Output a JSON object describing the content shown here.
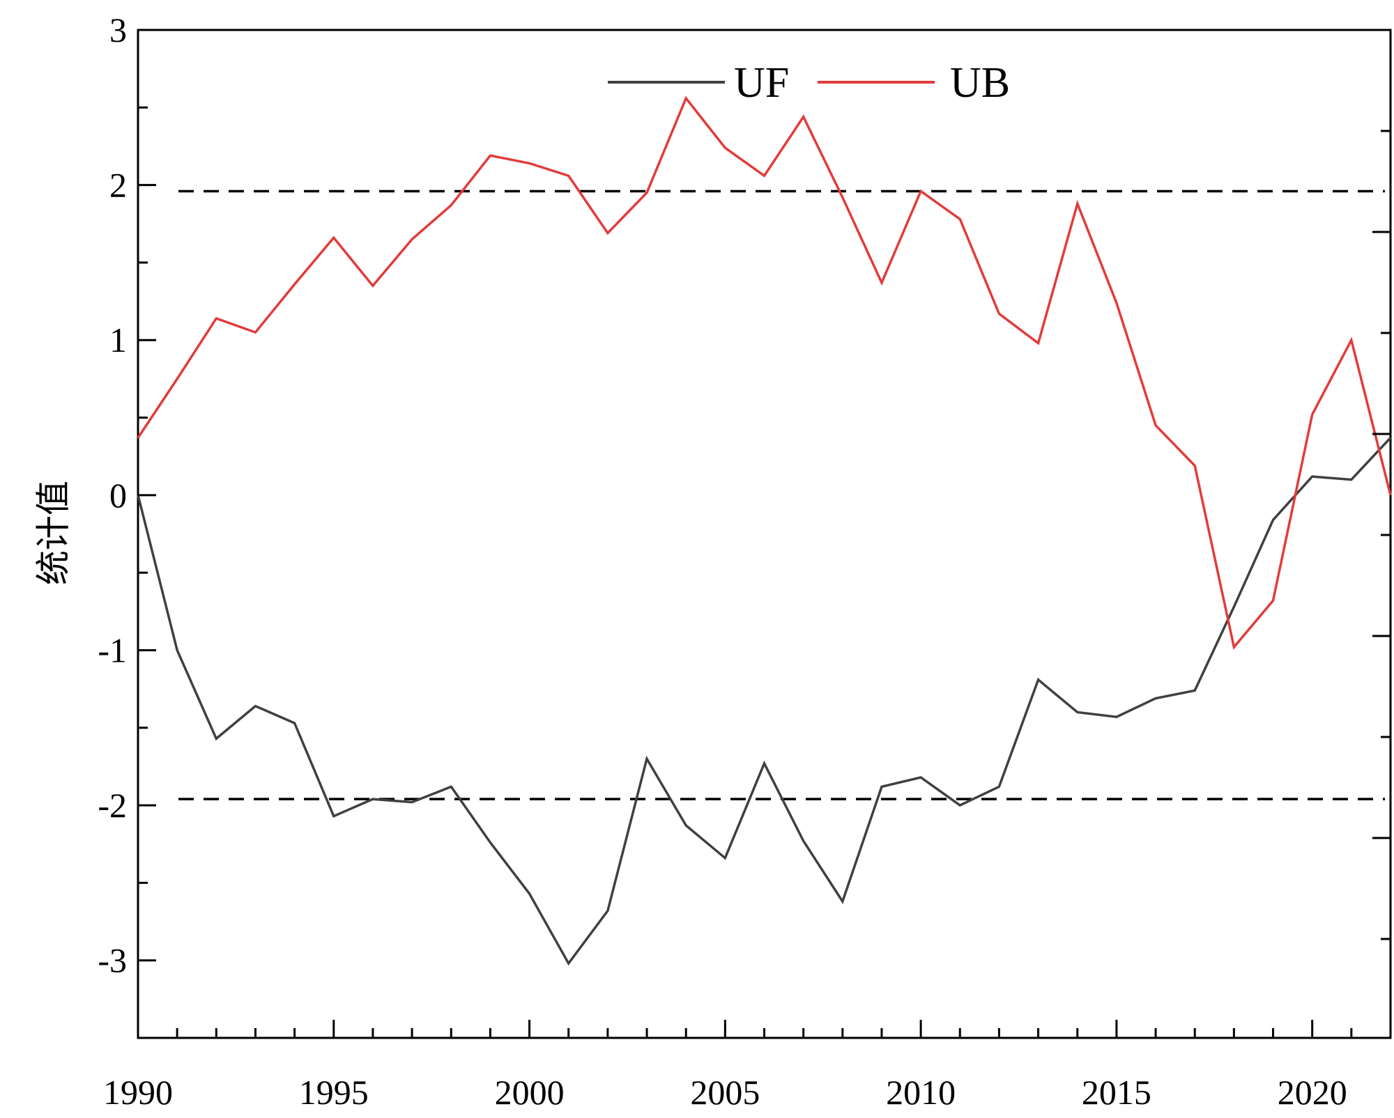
{
  "chart_data": {
    "type": "line",
    "title": "",
    "xlabel": "",
    "ylabel": "统计值",
    "xlim": [
      1990,
      2022
    ],
    "ylim": [
      -3.5,
      3
    ],
    "xticks": [
      1990,
      1995,
      2000,
      2005,
      2010,
      2015,
      2020
    ],
    "yticks": [
      -3,
      -2,
      -1,
      0,
      1,
      2,
      3
    ],
    "xtick_labels": [
      "1990",
      "1995",
      "2000",
      "2005",
      "2010",
      "2015",
      "2020"
    ],
    "ytick_labels": [
      "-3",
      "-2",
      "-1",
      "0",
      "1",
      "2",
      "3"
    ],
    "grid": false,
    "legend_position": "top-center",
    "x": [
      1990,
      1991,
      1992,
      1993,
      1994,
      1995,
      1996,
      1997,
      1998,
      1999,
      2000,
      2001,
      2002,
      2003,
      2004,
      2005,
      2006,
      2007,
      2008,
      2009,
      2010,
      2011,
      2012,
      2013,
      2014,
      2015,
      2016,
      2017,
      2018,
      2019,
      2020,
      2021,
      2022
    ],
    "series": [
      {
        "name": "UF",
        "color": "#404040",
        "values": [
          0.0,
          -1.0,
          -1.57,
          -1.36,
          -1.47,
          -2.07,
          -1.96,
          -1.98,
          -1.88,
          -2.24,
          -2.57,
          -3.02,
          -2.68,
          -1.7,
          -2.13,
          -2.34,
          -1.73,
          -2.23,
          -2.62,
          -1.88,
          -1.82,
          -2.0,
          -1.88,
          -1.19,
          -1.4,
          -1.43,
          -1.31,
          -1.26,
          -0.72,
          -0.16,
          0.12,
          0.1,
          0.37
        ]
      },
      {
        "name": "UB",
        "color": "#e23b3b",
        "values": [
          0.37,
          0.75,
          1.14,
          1.05,
          1.36,
          1.66,
          1.35,
          1.65,
          1.87,
          2.19,
          2.14,
          2.06,
          1.69,
          1.95,
          2.56,
          2.24,
          2.06,
          2.44,
          1.92,
          1.37,
          1.96,
          1.78,
          1.17,
          0.98,
          1.88,
          1.24,
          0.45,
          0.19,
          -0.98,
          -0.68,
          0.52,
          1.0,
          0.0
        ]
      }
    ],
    "reference_lines": [
      {
        "y": 1.96,
        "style": "dashed",
        "color": "#000000"
      },
      {
        "y": -1.96,
        "style": "dashed",
        "color": "#000000"
      }
    ]
  }
}
